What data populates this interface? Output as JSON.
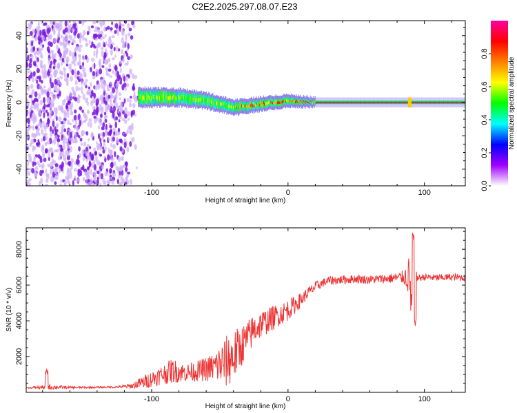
{
  "title": "C2E2.2025.297.08.07.E23",
  "colors": {
    "snr_line": "#ee3333",
    "band_core": "#cc0000",
    "band_edge": "#00cc44",
    "noise": "#7a18e0",
    "noise_light": "#cdb0f5"
  },
  "chart_data": [
    {
      "type": "heatmap",
      "title": "C2E2.2025.297.08.07.E23",
      "xlabel": "Height of straight line (km)",
      "ylabel": "Frequency (Hz)",
      "xlim": [
        -192,
        130
      ],
      "ylim": [
        -50,
        49
      ],
      "xticks": [
        -100,
        0,
        100
      ],
      "yticks": [
        -40,
        -20,
        0,
        20,
        40
      ],
      "colorbar": {
        "label": "Normalized spectral amplitude",
        "range": [
          0,
          1
        ],
        "ticks": [
          0.0,
          0.2,
          0.4,
          0.6,
          0.8
        ],
        "tick_labels": [
          "0.0",
          "0.2",
          "0.4",
          "0.6",
          "0.8"
        ],
        "colormap": [
          "#ffffff",
          "#a000ff",
          "#0000ff",
          "#00ffff",
          "#00ff00",
          "#ffff00",
          "#ff8000",
          "#ff0000",
          "#ff00a0"
        ]
      },
      "features": [
        {
          "name": "broadband noise",
          "x_range": [
            -192,
            -110
          ],
          "y_range": [
            -50,
            49
          ],
          "amplitude": 0.1
        },
        {
          "name": "signal band",
          "x_range": [
            -110,
            130
          ],
          "center_freq": [
            [
              -110,
              3
            ],
            [
              -80,
              3
            ],
            [
              -60,
              1
            ],
            [
              -40,
              -3
            ],
            [
              -20,
              -1
            ],
            [
              0,
              1
            ],
            [
              20,
              0
            ],
            [
              130,
              0
            ]
          ],
          "half_width": [
            [
              -110,
              4
            ],
            [
              -60,
              3
            ],
            [
              0,
              2
            ],
            [
              20,
              1
            ],
            [
              130,
              1
            ]
          ],
          "amplitude_range": [
            0.3,
            1.0
          ]
        },
        {
          "name": "feature near 90 km",
          "x": 89,
          "y_range": [
            -3,
            3
          ]
        }
      ]
    },
    {
      "type": "line",
      "xlabel": "Height of straight line (km)",
      "ylabel": "SNR (10 * v/v)",
      "xlim": [
        -192,
        130
      ],
      "ylim": [
        0,
        9200
      ],
      "xticks": [
        -100,
        0,
        100
      ],
      "yticks": [
        2000,
        4000,
        6000,
        8000
      ],
      "series": [
        {
          "name": "SNR",
          "x": [
            -192,
            -175,
            -160,
            -140,
            -125,
            -115,
            -105,
            -95,
            -85,
            -75,
            -65,
            -55,
            -45,
            -40,
            -35,
            -30,
            -25,
            -20,
            -15,
            -10,
            -5,
            0,
            5,
            10,
            15,
            20,
            25,
            30,
            40,
            50,
            60,
            70,
            80,
            85,
            89,
            91,
            93,
            95,
            100,
            110,
            120,
            130
          ],
          "y": [
            250,
            300,
            270,
            280,
            300,
            350,
            600,
            900,
            1200,
            1100,
            1200,
            1400,
            1700,
            2000,
            2500,
            3000,
            3500,
            3800,
            4000,
            4200,
            4400,
            4600,
            4900,
            5200,
            5600,
            5900,
            6100,
            6250,
            6300,
            6350,
            6300,
            6350,
            6400,
            6450,
            6500,
            4500,
            6450,
            6400,
            6450,
            6400,
            6450,
            6400
          ],
          "noise_amplitude": [
            20,
            150,
            60,
            50,
            60,
            150,
            400,
            500,
            700,
            500,
            600,
            800,
            1500,
            1500,
            1200,
            1000,
            900,
            800,
            700,
            700,
            600,
            600,
            500,
            400,
            300,
            300,
            250,
            250,
            250,
            250,
            250,
            250,
            300,
            400,
            1200,
            1500,
            800,
            200,
            200,
            200,
            200,
            200
          ]
        }
      ]
    }
  ]
}
